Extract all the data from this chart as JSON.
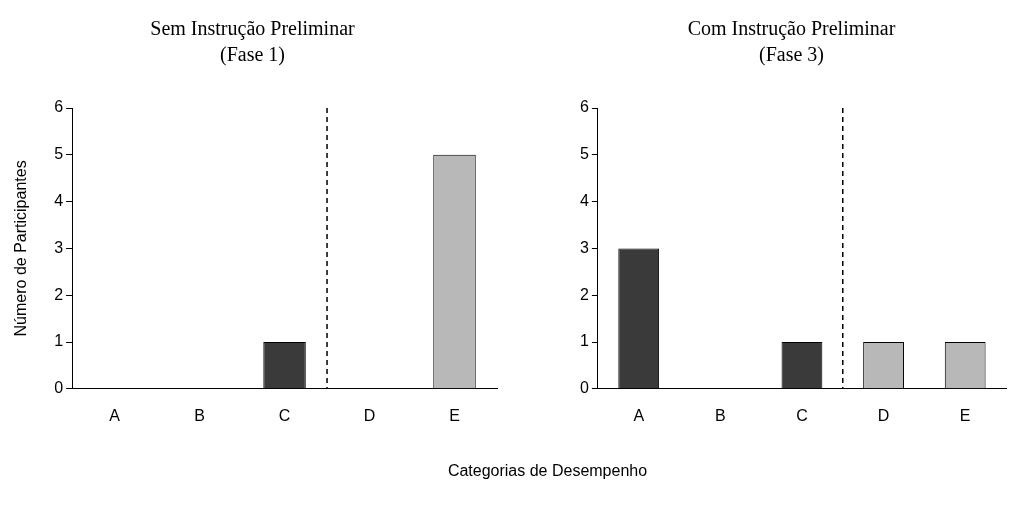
{
  "chart_data": [
    {
      "type": "bar",
      "title": "Sem Instrução Preliminar",
      "subtitle": "(Fase 1)",
      "ylabel": "Número de Participantes",
      "xlabel": "Categorias de Desempenho",
      "categories": [
        "A",
        "B",
        "C",
        "D",
        "E"
      ],
      "values": [
        0,
        0,
        1,
        0,
        5
      ],
      "colors": [
        "#d0d0d0",
        "#d0d0d0",
        "#3a3a3a",
        "#b8b8b8",
        "#b8b8b8"
      ],
      "ylim": [
        0,
        6
      ],
      "yticks": [
        0,
        1,
        2,
        3,
        4,
        5,
        6
      ],
      "grid": false
    },
    {
      "type": "bar",
      "title": "Com Instrução Preliminar",
      "subtitle": "(Fase 3)",
      "categories": [
        "A",
        "B",
        "C",
        "D",
        "E"
      ],
      "values": [
        3,
        0,
        1,
        1,
        1
      ],
      "colors": [
        "#3a3a3a",
        "#d0d0d0",
        "#3a3a3a",
        "#b8b8b8",
        "#b8b8b8"
      ],
      "ylim": [
        0,
        6
      ],
      "yticks": [
        0,
        1,
        2,
        3,
        4,
        5,
        6
      ],
      "grid": false
    }
  ]
}
